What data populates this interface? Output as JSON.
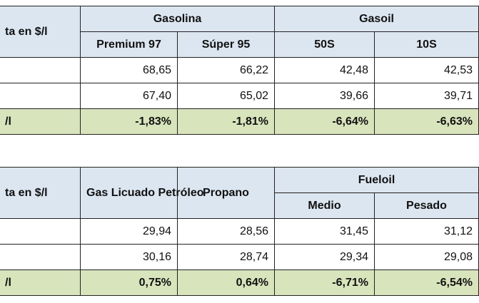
{
  "table1": {
    "corner_label": "ta en $/l",
    "groups": [
      {
        "label": "Gasolina",
        "columns": [
          "Premium 97",
          "Súper 95"
        ]
      },
      {
        "label": "Gasoil",
        "columns": [
          "50S",
          "10S"
        ]
      }
    ],
    "rows": [
      {
        "label": "",
        "values": [
          "68,65",
          "66,22",
          "42,48",
          "42,53"
        ]
      },
      {
        "label": "",
        "values": [
          "67,40",
          "65,02",
          "39,66",
          "39,71"
        ]
      }
    ],
    "variation": {
      "label": "/l",
      "values": [
        "-1,83%",
        "-1,81%",
        "-6,64%",
        "-6,63%"
      ]
    }
  },
  "table2": {
    "corner_label": "ta en $/l",
    "single_columns": [
      "Gas Licuado Petróleo",
      "Propano"
    ],
    "group": {
      "label": "Fueloil",
      "columns": [
        "Medio",
        "Pesado"
      ]
    },
    "rows": [
      {
        "label": "",
        "values": [
          "29,94",
          "28,56",
          "31,45",
          "31,12"
        ]
      },
      {
        "label": "",
        "values": [
          "30,16",
          "28,74",
          "29,34",
          "29,08"
        ]
      }
    ],
    "variation": {
      "label": "/l",
      "values": [
        "0,75%",
        "0,64%",
        "-6,71%",
        "-6,54%"
      ]
    }
  },
  "colors": {
    "header_bg": "#dce6f1",
    "variation_bg": "#d8e4bc",
    "border": "#222222"
  }
}
